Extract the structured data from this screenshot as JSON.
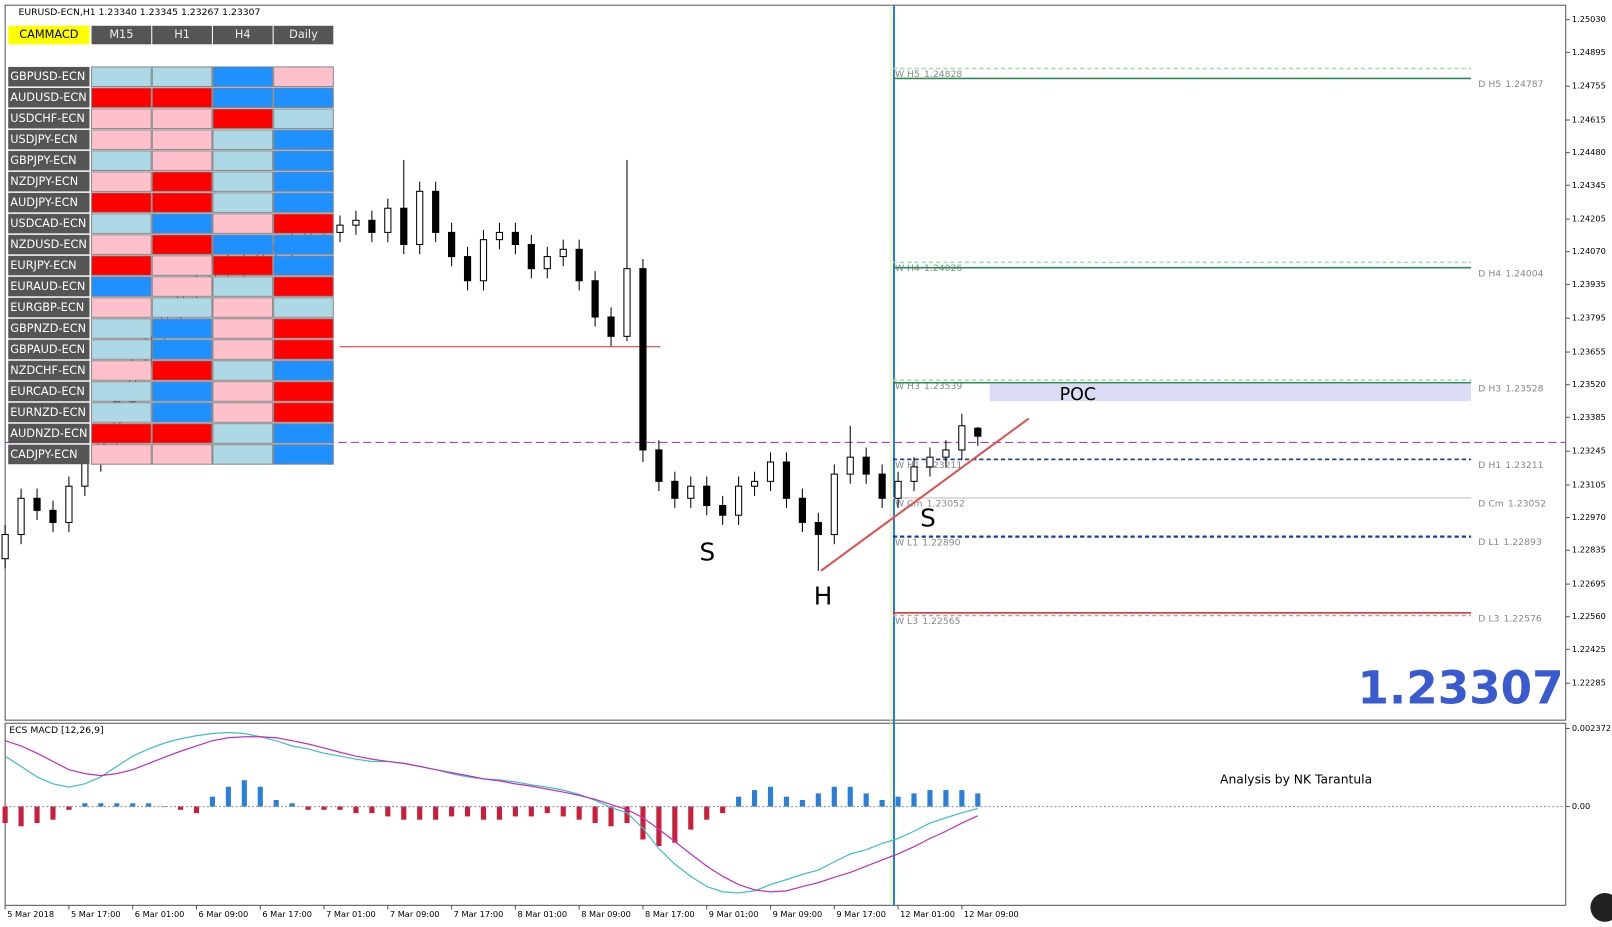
{
  "header": "EURUSD-ECN,H1  1.23340 1.23345 1.23267 1.23307",
  "price_axis": {
    "ylim": [
      1.22132,
      1.2509
    ],
    "ticks": [
      {
        "value": 1.2503,
        "label": "1.25030"
      },
      {
        "value": 1.24895,
        "label": "1.24895"
      },
      {
        "value": 1.24755,
        "label": "1.24755"
      },
      {
        "value": 1.24615,
        "label": "1.24615"
      },
      {
        "value": 1.2448,
        "label": "1.24480"
      },
      {
        "value": 1.24345,
        "label": "1.24345"
      },
      {
        "value": 1.24205,
        "label": "1.24205"
      },
      {
        "value": 1.2407,
        "label": "1.24070"
      },
      {
        "value": 1.23935,
        "label": "1.23935"
      },
      {
        "value": 1.23795,
        "label": "1.23795"
      },
      {
        "value": 1.23655,
        "label": "1.23655"
      },
      {
        "value": 1.2352,
        "label": "1.23520"
      },
      {
        "value": 1.23385,
        "label": "1.23385"
      },
      {
        "value": 1.23245,
        "label": "1.23245"
      },
      {
        "value": 1.23105,
        "label": "1.23105"
      },
      {
        "value": 1.2297,
        "label": "1.22970"
      },
      {
        "value": 1.22835,
        "label": "1.22835"
      },
      {
        "value": 1.22695,
        "label": "1.22695"
      },
      {
        "value": 1.2256,
        "label": "1.22560"
      },
      {
        "value": 1.22425,
        "label": "1.22425"
      },
      {
        "value": 1.22285,
        "label": "1.22285"
      }
    ]
  },
  "time_axis": {
    "labels": [
      "5 Mar 2018",
      "5 Mar 17:00",
      "6 Mar 01:00",
      "6 Mar 09:00",
      "6 Mar 17:00",
      "7 Mar 01:00",
      "7 Mar 09:00",
      "7 Mar 17:00",
      "8 Mar 01:00",
      "8 Mar 09:00",
      "8 Mar 17:00",
      "9 Mar 01:00",
      "9 Mar 09:00",
      "9 Mar 17:00",
      "12 Mar 01:00",
      "12 Mar 09:00"
    ]
  },
  "candles": [
    [
      1.228,
      1.2294,
      1.2276,
      1.229
    ],
    [
      1.229,
      1.2309,
      1.2286,
      1.2305
    ],
    [
      1.2305,
      1.2309,
      1.2296,
      1.23
    ],
    [
      1.23,
      1.2304,
      1.2291,
      1.2295
    ],
    [
      1.2295,
      1.2314,
      1.2291,
      1.231
    ],
    [
      1.231,
      1.2324,
      1.2306,
      1.232
    ],
    [
      1.232,
      1.2334,
      1.2316,
      1.233
    ],
    [
      1.233,
      1.2349,
      1.2326,
      1.2345
    ],
    [
      1.2345,
      1.2364,
      1.2341,
      1.236
    ],
    [
      1.236,
      1.2376,
      1.2356,
      1.2372
    ],
    [
      1.2372,
      1.2384,
      1.2368,
      1.238
    ],
    [
      1.238,
      1.2394,
      1.2376,
      1.239
    ],
    [
      1.239,
      1.2399,
      1.2386,
      1.2395
    ],
    [
      1.2395,
      1.2406,
      1.2391,
      1.2402
    ],
    [
      1.2402,
      1.2406,
      1.2394,
      1.2398
    ],
    [
      1.2398,
      1.2409,
      1.2394,
      1.2405
    ],
    [
      1.2405,
      1.2414,
      1.2401,
      1.241
    ],
    [
      1.241,
      1.2414,
      1.2404,
      1.2408
    ],
    [
      1.2408,
      1.2416,
      1.2404,
      1.2412
    ],
    [
      1.2412,
      1.2422,
      1.2408,
      1.2418
    ],
    [
      1.2418,
      1.2422,
      1.2411,
      1.2415
    ],
    [
      1.2415,
      1.2422,
      1.2411,
      1.2418
    ],
    [
      1.2418,
      1.2424,
      1.2414,
      1.242
    ],
    [
      1.242,
      1.2424,
      1.2411,
      1.2415
    ],
    [
      1.2415,
      1.2429,
      1.2411,
      1.2425
    ],
    [
      1.2425,
      1.2445,
      1.2406,
      1.241
    ],
    [
      1.241,
      1.2436,
      1.2406,
      1.2432
    ],
    [
      1.2432,
      1.2436,
      1.2411,
      1.2415
    ],
    [
      1.2415,
      1.2419,
      1.2401,
      1.2405
    ],
    [
      1.2405,
      1.2409,
      1.2391,
      1.2395
    ],
    [
      1.2395,
      1.2416,
      1.2391,
      1.2412
    ],
    [
      1.2412,
      1.2419,
      1.2408,
      1.2415
    ],
    [
      1.2415,
      1.2419,
      1.2406,
      1.241
    ],
    [
      1.241,
      1.2414,
      1.2396,
      1.24
    ],
    [
      1.24,
      1.2409,
      1.2396,
      1.2405
    ],
    [
      1.2405,
      1.2412,
      1.2401,
      1.2408
    ],
    [
      1.2408,
      1.2412,
      1.2391,
      1.2395
    ],
    [
      1.2395,
      1.2399,
      1.2376,
      1.238
    ],
    [
      1.238,
      1.2384,
      1.2368,
      1.2372
    ],
    [
      1.2372,
      1.2445,
      1.237,
      1.24
    ],
    [
      1.24,
      1.2404,
      1.232,
      1.2325
    ],
    [
      1.2325,
      1.2329,
      1.2308,
      1.2312
    ],
    [
      1.2312,
      1.2316,
      1.2301,
      1.2305
    ],
    [
      1.2305,
      1.2314,
      1.2301,
      1.231
    ],
    [
      1.231,
      1.2314,
      1.2298,
      1.2302
    ],
    [
      1.2302,
      1.2306,
      1.2294,
      1.2298
    ],
    [
      1.2298,
      1.2314,
      1.2294,
      1.231
    ],
    [
      1.231,
      1.2316,
      1.2306,
      1.2312
    ],
    [
      1.2312,
      1.2324,
      1.2308,
      1.232
    ],
    [
      1.232,
      1.2324,
      1.2301,
      1.2305
    ],
    [
      1.2305,
      1.2309,
      1.2291,
      1.2295
    ],
    [
      1.2295,
      1.2299,
      1.2275,
      1.229
    ],
    [
      1.229,
      1.2319,
      1.2286,
      1.2315
    ],
    [
      1.2315,
      1.2335,
      1.2311,
      1.2322
    ],
    [
      1.2322,
      1.2326,
      1.2311,
      1.2315
    ],
    [
      1.2315,
      1.2319,
      1.2301,
      1.2305
    ],
    [
      1.2305,
      1.2316,
      1.2301,
      1.2312
    ],
    [
      1.2312,
      1.2322,
      1.2308,
      1.2318
    ],
    [
      1.2318,
      1.2326,
      1.2314,
      1.2322
    ],
    [
      1.2322,
      1.2329,
      1.2318,
      1.2325
    ],
    [
      1.2325,
      1.234,
      1.2321,
      1.2335
    ],
    [
      1.2334,
      1.23345,
      1.23267,
      1.23307
    ]
  ],
  "levels": [
    {
      "name": "W H5",
      "value": 1.24828,
      "value_label": "1.24828",
      "side": "left",
      "color": "#9fdc9f",
      "dashed": true
    },
    {
      "name": "D H5",
      "value": 1.24787,
      "value_label": "1.24787",
      "side": "right",
      "color": "#2e8b57",
      "dashed": false
    },
    {
      "name": "W H4",
      "value": 1.24026,
      "value_label": "1.24026",
      "side": "left",
      "color": "#9fdc9f",
      "dashed": true
    },
    {
      "name": "D H4",
      "value": 1.24004,
      "value_label": "1.24004",
      "side": "right",
      "color": "#2e8b57",
      "dashed": false
    },
    {
      "name": "W H3",
      "value": 1.23539,
      "value_label": "1.23539",
      "side": "left",
      "color": "#9fdc9f",
      "dashed": true
    },
    {
      "name": "D H3",
      "value": 1.23528,
      "value_label": "1.23528",
      "side": "right",
      "color": "#2e8b57",
      "dashed": false
    },
    {
      "name": "W H1",
      "value": 1.23211,
      "value_label": "1.23211",
      "side": "left",
      "color": "#1e3c9c",
      "dashed": true
    },
    {
      "name": "D H1",
      "value": 1.23211,
      "value_label": "1.23211",
      "side": "right",
      "color": "#1e3c9c",
      "dashed": true
    },
    {
      "name": "W Cm",
      "value": 1.23052,
      "value_label": "1.23052",
      "side": "left",
      "color": "#d8d8d8",
      "dashed": false
    },
    {
      "name": "D Cm",
      "value": 1.23052,
      "value_label": "1.23052",
      "side": "right",
      "color": "#d8d8d8",
      "dashed": false
    },
    {
      "name": "W L1",
      "value": 1.2289,
      "value_label": "1.22890",
      "side": "left",
      "color": "#1e3c9c",
      "dashed": true
    },
    {
      "name": "D L1",
      "value": 1.22893,
      "value_label": "1.22893",
      "side": "right",
      "color": "#1e3c9c",
      "dashed": true
    },
    {
      "name": "W L3",
      "value": 1.22565,
      "value_label": "1.22565",
      "side": "left",
      "color": "#aaaaaa",
      "dashed": true
    },
    {
      "name": "D L3",
      "value": 1.22576,
      "value_label": "1.22576",
      "side": "right",
      "color": "#e02020",
      "dashed": false
    }
  ],
  "lines": {
    "bid": 1.23281,
    "resistance": 1.23677,
    "trendline": [
      1.2275,
      1.2338
    ]
  },
  "annotations": {
    "s_left": "S",
    "head": "H",
    "s_right": "S",
    "poc": "POC",
    "credit": "Analysis by NK Tarantula"
  },
  "current_price": {
    "value": 1.23307,
    "label": "1.23307"
  },
  "macd": {
    "title": "ECS MACD [12,26,9]",
    "ylim": [
      -0.003,
      0.00253
    ],
    "ticks": [
      {
        "value": 0.002372,
        "label": "0.002372"
      },
      {
        "value": 0,
        "label": "0.00"
      }
    ],
    "histogram": [
      -0.0005,
      -0.0006,
      -0.0005,
      -0.0004,
      -0.0001,
      0.0001,
      0.0001,
      0.0001,
      0.0001,
      0.0001,
      0,
      -0.0001,
      -0.0002,
      0.0003,
      0.0006,
      0.0008,
      0.0006,
      0.0002,
      0.0001,
      -0.0001,
      -0.0001,
      -0.0001,
      -0.0002,
      -0.0002,
      -0.0003,
      -0.0004,
      -0.0004,
      -0.0004,
      -0.0003,
      -0.0003,
      -0.0004,
      -0.0004,
      -0.0003,
      -0.0003,
      -0.0002,
      -0.0003,
      -0.0004,
      -0.0005,
      -0.0006,
      -0.0005,
      -0.001,
      -0.0012,
      -0.0011,
      -0.0007,
      -0.0004,
      -0.0002,
      0.0003,
      0.0005,
      0.0006,
      0.0003,
      0.0002,
      0.0004,
      0.0006,
      0.0006,
      0.0004,
      0.0002,
      0.0003,
      0.0004,
      0.0005,
      0.0005,
      0.0005,
      0.0004
    ],
    "main": [
      0.00153,
      0.00122,
      0.0009,
      0.00069,
      0.00059,
      0.00069,
      0.0009,
      0.00122,
      0.00153,
      0.00175,
      0.00193,
      0.00206,
      0.00215,
      0.00222,
      0.00225,
      0.00222,
      0.00212,
      0.002,
      0.00184,
      0.00175,
      0.00162,
      0.00153,
      0.00144,
      0.00137,
      0.00137,
      0.00131,
      0.00122,
      0.00112,
      0.001,
      0.0009,
      0.00084,
      0.00081,
      0.00075,
      0.00066,
      0.00059,
      0.0005,
      0.00037,
      0.00019,
      -3e-05,
      -0.00019,
      -0.00066,
      -0.00128,
      -0.00175,
      -0.00212,
      -0.00243,
      -0.00259,
      -0.00262,
      -0.00256,
      -0.00237,
      -0.00222,
      -0.00206,
      -0.00193,
      -0.00168,
      -0.00144,
      -0.00131,
      -0.00112,
      -0.00097,
      -0.00075,
      -0.0005,
      -0.00034,
      -0.00019,
      -6e-05
    ],
    "signal": [
      0.002,
      0.00184,
      0.00162,
      0.00137,
      0.00112,
      0.001,
      0.00094,
      0.001,
      0.00112,
      0.00131,
      0.0015,
      0.00168,
      0.00184,
      0.002,
      0.00209,
      0.00212,
      0.00212,
      0.00209,
      0.002,
      0.0019,
      0.00178,
      0.00165,
      0.00153,
      0.00144,
      0.00137,
      0.00131,
      0.00122,
      0.00112,
      0.00103,
      0.00094,
      0.00084,
      0.00078,
      0.00069,
      0.00062,
      0.00053,
      0.00044,
      0.00034,
      0.00022,
      6e-05,
      -9e-05,
      -0.00034,
      -0.00069,
      -0.00106,
      -0.00144,
      -0.00181,
      -0.00212,
      -0.00237,
      -0.00253,
      -0.00259,
      -0.00256,
      -0.00243,
      -0.00231,
      -0.00215,
      -0.002,
      -0.00181,
      -0.00162,
      -0.00144,
      -0.00122,
      -0.00097,
      -0.00075,
      -0.0005,
      -0.00028
    ]
  },
  "panel": {
    "header": [
      "CAMMACD",
      "M15",
      "H1",
      "H4",
      "Daily"
    ],
    "rows": [
      {
        "pair": "GBPUSD-ECN",
        "cells": [
          "#add8e6",
          "#add8e6",
          "#1e90ff",
          "#ffc0cb"
        ]
      },
      {
        "pair": "AUDUSD-ECN",
        "cells": [
          "#ff0000",
          "#ff0000",
          "#1e90ff",
          "#1e90ff"
        ]
      },
      {
        "pair": "USDCHF-ECN",
        "cells": [
          "#ffc0cb",
          "#ffc0cb",
          "#ff0000",
          "#add8e6"
        ]
      },
      {
        "pair": "USDJPY-ECN",
        "cells": [
          "#ffc0cb",
          "#ffc0cb",
          "#add8e6",
          "#1e90ff"
        ]
      },
      {
        "pair": "GBPJPY-ECN",
        "cells": [
          "#add8e6",
          "#ffc0cb",
          "#add8e6",
          "#1e90ff"
        ]
      },
      {
        "pair": "NZDJPY-ECN",
        "cells": [
          "#ffc0cb",
          "#ff0000",
          "#add8e6",
          "#1e90ff"
        ]
      },
      {
        "pair": "AUDJPY-ECN",
        "cells": [
          "#ff0000",
          "#ff0000",
          "#add8e6",
          "#1e90ff"
        ]
      },
      {
        "pair": "USDCAD-ECN",
        "cells": [
          "#add8e6",
          "#1e90ff",
          "#ffc0cb",
          "#ff0000"
        ]
      },
      {
        "pair": "NZDUSD-ECN",
        "cells": [
          "#ffc0cb",
          "#ff0000",
          "#1e90ff",
          "#1e90ff"
        ]
      },
      {
        "pair": "EURJPY-ECN",
        "cells": [
          "#ff0000",
          "#ffc0cb",
          "#ff0000",
          "#1e90ff"
        ]
      },
      {
        "pair": "EURAUD-ECN",
        "cells": [
          "#1e90ff",
          "#ffc0cb",
          "#add8e6",
          "#ff0000"
        ]
      },
      {
        "pair": "EURGBP-ECN",
        "cells": [
          "#ffc0cb",
          "#add8e6",
          "#ffc0cb",
          "#add8e6"
        ]
      },
      {
        "pair": "GBPNZD-ECN",
        "cells": [
          "#add8e6",
          "#1e90ff",
          "#ffc0cb",
          "#ff0000"
        ]
      },
      {
        "pair": "GBPAUD-ECN",
        "cells": [
          "#add8e6",
          "#1e90ff",
          "#ffc0cb",
          "#ff0000"
        ]
      },
      {
        "pair": "NZDCHF-ECN",
        "cells": [
          "#ffc0cb",
          "#ff0000",
          "#add8e6",
          "#1e90ff"
        ]
      },
      {
        "pair": "EURCAD-ECN",
        "cells": [
          "#add8e6",
          "#1e90ff",
          "#ffc0cb",
          "#ff0000"
        ]
      },
      {
        "pair": "EURNZD-ECN",
        "cells": [
          "#add8e6",
          "#1e90ff",
          "#ffc0cb",
          "#ff0000"
        ]
      },
      {
        "pair": "AUDNZD-ECN",
        "cells": [
          "#ff0000",
          "#ff0000",
          "#add8e6",
          "#1e90ff"
        ]
      },
      {
        "pair": "CADJPY-ECN",
        "cells": [
          "#ffc0cb",
          "#ffc0cb",
          "#add8e6",
          "#1e90ff"
        ]
      }
    ]
  }
}
